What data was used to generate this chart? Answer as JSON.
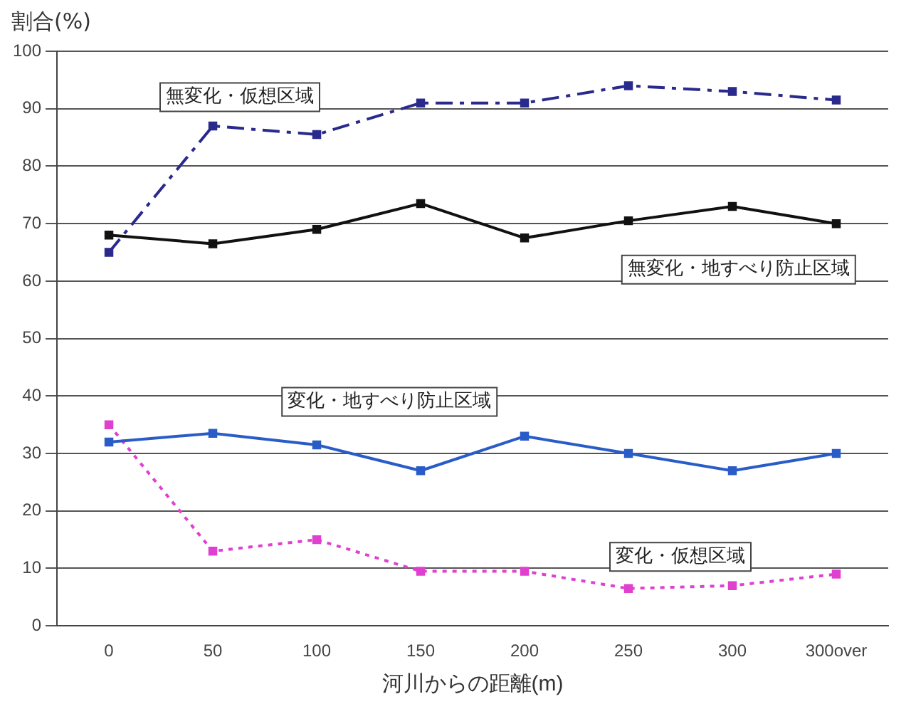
{
  "chart_data": {
    "type": "line",
    "xlabel": "河川からの距離(m)",
    "ylabel": "割合(%)",
    "categories": [
      "0",
      "50",
      "100",
      "150",
      "200",
      "250",
      "300",
      "300over"
    ],
    "series": [
      {
        "name": "無変化・仮想区域",
        "color": "#2a2a8c",
        "line_style": "dashed",
        "values": [
          65,
          87,
          85.5,
          91,
          91,
          94,
          93,
          91.5
        ]
      },
      {
        "name": "無変化・地すべり防止区域",
        "color": "#111111",
        "line_style": "solid",
        "values": [
          68,
          66.5,
          69,
          73.5,
          67.5,
          70.5,
          73,
          70
        ]
      },
      {
        "name": "変化・地すべり防止区域",
        "color": "#2a5cc8",
        "line_style": "solid",
        "values": [
          32,
          33.5,
          31.5,
          27,
          33,
          30,
          27,
          30
        ]
      },
      {
        "name": "変化・仮想区域",
        "color": "#e040d0",
        "line_style": "dotted",
        "values": [
          35,
          13,
          15,
          9.5,
          9.5,
          6.5,
          7,
          9
        ]
      }
    ],
    "ylim": [
      0,
      100
    ],
    "yticks": [
      0,
      10,
      20,
      30,
      40,
      50,
      60,
      70,
      80,
      90,
      100
    ],
    "grid": "y",
    "legend": false,
    "marker": "square"
  }
}
